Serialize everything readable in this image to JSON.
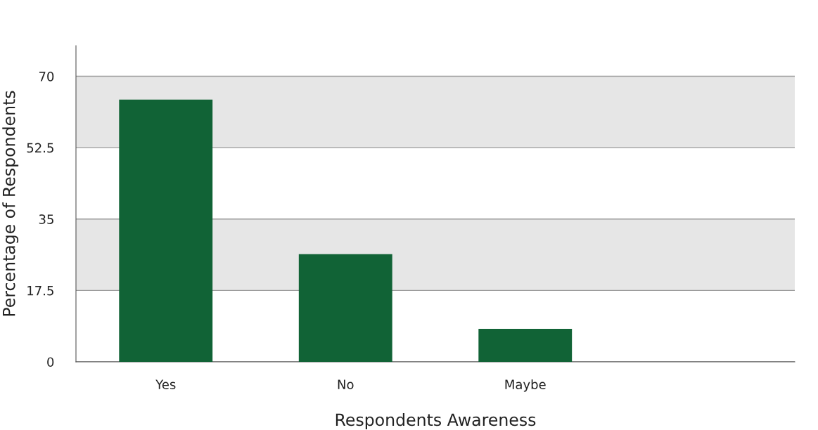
{
  "chart_data": {
    "type": "bar",
    "xlabel": "Respondents Awareness",
    "ylabel": "Percentage of Respondents",
    "categories": [
      "Yes",
      "No",
      "Maybe",
      null
    ],
    "values": [
      64.3,
      26.4,
      8.1,
      null
    ],
    "color": "#116336",
    "ylim": [
      0,
      77.5
    ],
    "yticks": [
      0,
      17.5,
      35,
      52.5,
      70
    ],
    "grid": "y",
    "bands": [
      {
        "axis": "y",
        "from": 17.5,
        "to": 35,
        "color": "#e6e6e6"
      },
      {
        "axis": "y",
        "from": 52.5,
        "to": 70,
        "color": "#e6e6e6"
      }
    ]
  }
}
